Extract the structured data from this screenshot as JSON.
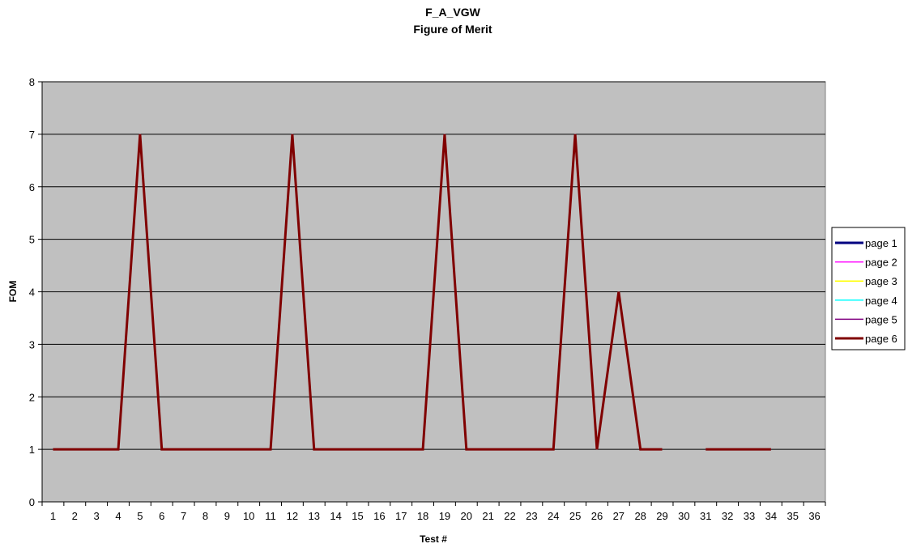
{
  "chart_data": {
    "type": "line",
    "title": "F_A_VGW",
    "subtitle": "Figure of Merit",
    "xlabel": "Test #",
    "ylabel": "FOM",
    "ylim": [
      0,
      8
    ],
    "yticks": [
      0,
      1,
      2,
      3,
      4,
      5,
      6,
      7,
      8
    ],
    "x": [
      1,
      2,
      3,
      4,
      5,
      6,
      7,
      8,
      9,
      10,
      11,
      12,
      13,
      14,
      15,
      16,
      17,
      18,
      19,
      20,
      21,
      22,
      23,
      24,
      25,
      26,
      27,
      28,
      29,
      30,
      31,
      32,
      33,
      34,
      35,
      36
    ],
    "grid": "horizontal",
    "legend_position": "right",
    "plot_background": "#c0c0c0",
    "series": [
      {
        "name": "page 1",
        "color": "#000080",
        "values": [
          1,
          1,
          1,
          1,
          7,
          1,
          1,
          1,
          1,
          1,
          1,
          7,
          1,
          1,
          1,
          1,
          1,
          1,
          7,
          1,
          1,
          1,
          1,
          1,
          7,
          1,
          4,
          1,
          1,
          null,
          1,
          1,
          1,
          1,
          null,
          null
        ]
      },
      {
        "name": "page 2",
        "color": "#ff00ff",
        "values": [
          1,
          1,
          1,
          1,
          7,
          1,
          1,
          1,
          1,
          1,
          1,
          7,
          1,
          1,
          1,
          1,
          1,
          1,
          7,
          1,
          1,
          1,
          1,
          1,
          7,
          1,
          4,
          1,
          1,
          null,
          1,
          1,
          1,
          1,
          null,
          null
        ]
      },
      {
        "name": "page 3",
        "color": "#ffff00",
        "values": [
          1,
          1,
          1,
          1,
          7,
          1,
          1,
          1,
          1,
          1,
          1,
          7,
          1,
          1,
          1,
          1,
          1,
          1,
          7,
          1,
          1,
          1,
          1,
          1,
          7,
          1,
          4,
          1,
          1,
          null,
          1,
          1,
          1,
          1,
          null,
          null
        ]
      },
      {
        "name": "page 4",
        "color": "#00ffff",
        "values": [
          1,
          1,
          1,
          1,
          7,
          1,
          1,
          1,
          1,
          1,
          1,
          7,
          1,
          1,
          1,
          1,
          1,
          1,
          7,
          1,
          1,
          1,
          1,
          1,
          7,
          1,
          4,
          1,
          1,
          null,
          1,
          1,
          1,
          1,
          null,
          null
        ]
      },
      {
        "name": "page 5",
        "color": "#800080",
        "values": [
          1,
          1,
          1,
          1,
          7,
          1,
          1,
          1,
          1,
          1,
          1,
          7,
          1,
          1,
          1,
          1,
          1,
          1,
          7,
          1,
          1,
          1,
          1,
          1,
          7,
          1,
          4,
          1,
          1,
          null,
          1,
          1,
          1,
          1,
          null,
          null
        ]
      },
      {
        "name": "page 6",
        "color": "#800000",
        "values": [
          1,
          1,
          1,
          1,
          7,
          1,
          1,
          1,
          1,
          1,
          1,
          7,
          1,
          1,
          1,
          1,
          1,
          1,
          7,
          1,
          1,
          1,
          1,
          1,
          7,
          1,
          4,
          1,
          1,
          null,
          1,
          1,
          1,
          1,
          null,
          null
        ]
      }
    ]
  }
}
